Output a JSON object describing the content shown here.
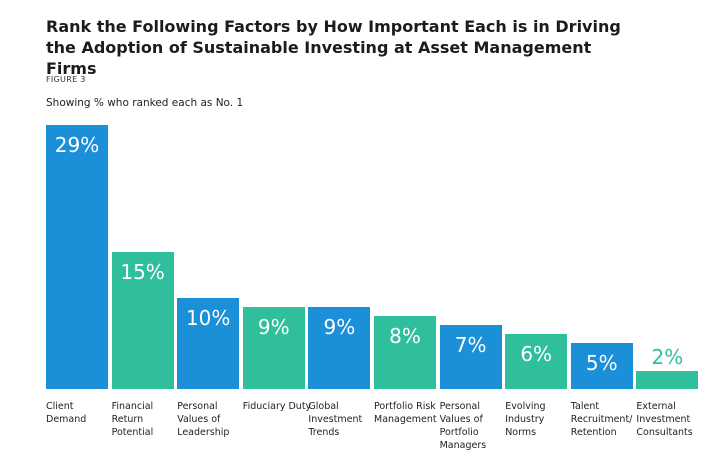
{
  "chart_data": {
    "type": "bar",
    "title": "Rank the Following Factors by How Important Each is in Driving the Adoption of Sustainable Investing at Asset Management Firms",
    "figure_label": "FIGURE 3",
    "subtitle": "Showing % who ranked each as No. 1",
    "categories": [
      "Client Demand",
      "Financial Return Potential",
      "Personal Values of Leadership",
      "Fiduciary Duty",
      "Global Investment Trends",
      "Portfolio Risk Management",
      "Personal Values of Portfolio Managers",
      "Evolving Industry Norms",
      "Talent Recruitment/ Retention",
      "External Investment Consultants"
    ],
    "values": [
      29,
      15,
      10,
      9,
      9,
      8,
      7,
      6,
      5,
      2
    ],
    "value_labels": [
      "29%",
      "15%",
      "10%",
      "9%",
      "9%",
      "8%",
      "7%",
      "6%",
      "5%",
      "2%"
    ],
    "colors": [
      "#1b8fd8",
      "#2fbf9c",
      "#1b8fd8",
      "#2fbf9c",
      "#1b8fd8",
      "#2fbf9c",
      "#1b8fd8",
      "#2fbf9c",
      "#1b8fd8",
      "#2fbf9c"
    ]
  }
}
